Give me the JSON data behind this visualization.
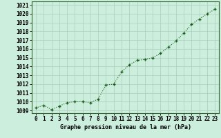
{
  "x": [
    0,
    1,
    2,
    3,
    4,
    5,
    6,
    7,
    8,
    9,
    10,
    11,
    12,
    13,
    14,
    15,
    16,
    17,
    18,
    19,
    20,
    21,
    22,
    23
  ],
  "y": [
    1009.3,
    1009.6,
    1009.1,
    1009.5,
    1009.9,
    1010.0,
    1010.0,
    1009.9,
    1010.3,
    1011.9,
    1012.0,
    1013.4,
    1014.2,
    1014.7,
    1014.8,
    1015.0,
    1015.5,
    1016.2,
    1016.9,
    1017.8,
    1018.8,
    1019.4,
    1020.0,
    1020.5
  ],
  "line_color": "#1a5c1a",
  "marker_color": "#1a5c1a",
  "bg_color": "#cceedd",
  "grid_color": "#aaccbb",
  "xlabel": "Graphe pression niveau de la mer (hPa)",
  "xlabel_fontsize": 6.0,
  "ylabel_ticks": [
    1009,
    1010,
    1011,
    1012,
    1013,
    1014,
    1015,
    1016,
    1017,
    1018,
    1019,
    1020,
    1021
  ],
  "ylim": [
    1008.7,
    1021.4
  ],
  "xlim": [
    -0.5,
    23.5
  ],
  "tick_fontsize": 5.5,
  "spine_color": "#336633"
}
